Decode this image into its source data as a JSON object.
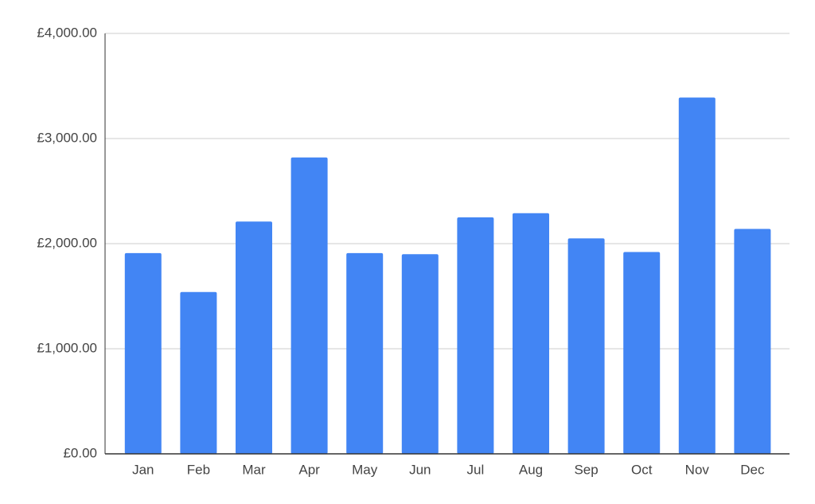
{
  "chart_data": {
    "type": "bar",
    "categories": [
      "Jan",
      "Feb",
      "Mar",
      "Apr",
      "May",
      "Jun",
      "Jul",
      "Aug",
      "Sep",
      "Oct",
      "Nov",
      "Dec"
    ],
    "values": [
      1910,
      1540,
      2210,
      2820,
      1910,
      1900,
      2250,
      2290,
      2050,
      1920,
      3390,
      2140
    ],
    "color": "#4285f4",
    "ylim": [
      0,
      4000
    ],
    "yticks": [
      {
        "value": 0,
        "label": "£0.00"
      },
      {
        "value": 1000,
        "label": "£1,000.00"
      },
      {
        "value": 2000,
        "label": "£2,000.00"
      },
      {
        "value": 3000,
        "label": "£3,000.00"
      },
      {
        "value": 4000,
        "label": "£4,000.00"
      }
    ],
    "grid": true
  }
}
